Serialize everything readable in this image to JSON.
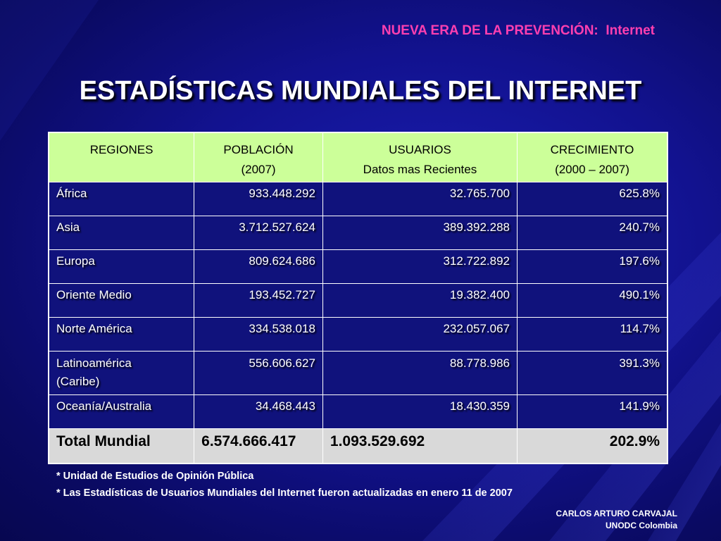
{
  "header": {
    "subtitle": "NUEVA ERA DE LA PREVENCIÓN:  Internet",
    "title": "ESTADÍSTICAS MUNDIALES DEL INTERNET"
  },
  "table": {
    "columns": [
      {
        "line1": "REGIONES",
        "line2": ""
      },
      {
        "line1": "POBLACIÓN",
        "line2": "(2007)"
      },
      {
        "line1": "USUARIOS",
        "line2": "Datos mas Recientes"
      },
      {
        "line1": "CRECIMIENTO",
        "line2": "(2000 – 2007)"
      }
    ],
    "rows": [
      {
        "region": "África",
        "population": "933.448.292",
        "users": "32.765.700",
        "growth": "625.8%"
      },
      {
        "region": "Asia",
        "population": "3.712.527.624",
        "users": "389.392.288",
        "growth": "240.7%"
      },
      {
        "region": "Europa",
        "population": "809.624.686",
        "users": "312.722.892",
        "growth": "197.6%"
      },
      {
        "region": "Oriente Medio",
        "population": "193.452.727",
        "users": "19.382.400",
        "growth": "490.1%"
      },
      {
        "region": "Norte América",
        "population": "334.538.018",
        "users": "232.057.067",
        "growth": "114.7%"
      },
      {
        "region": "Latinoamérica (Caribe)",
        "population": "556.606.627",
        "users": "88.778.986",
        "growth": "391.3%"
      },
      {
        "region": "Oceanía/Australia",
        "population": "34.468.443",
        "users": "18.430.359",
        "growth": "141.9%"
      }
    ],
    "total": {
      "region": "Total Mundial",
      "population": "6.574.666.417",
      "users": "1.093.529.692",
      "growth": "202.9%"
    }
  },
  "notes": [
    "* Unidad de Estudios de Opinión Pública",
    "* Las Estadísticas de Usuarios Mundiales del Internet fueron actualizadas en enero 11 de 2007"
  ],
  "author": {
    "name": "CARLOS ARTURO CARVAJAL",
    "org": "UNODC Colombia"
  },
  "colors": {
    "background": "#12128f",
    "subtitle": "#ff3fb0",
    "header_row": "#ccff99",
    "total_row": "#d9d9d9"
  }
}
